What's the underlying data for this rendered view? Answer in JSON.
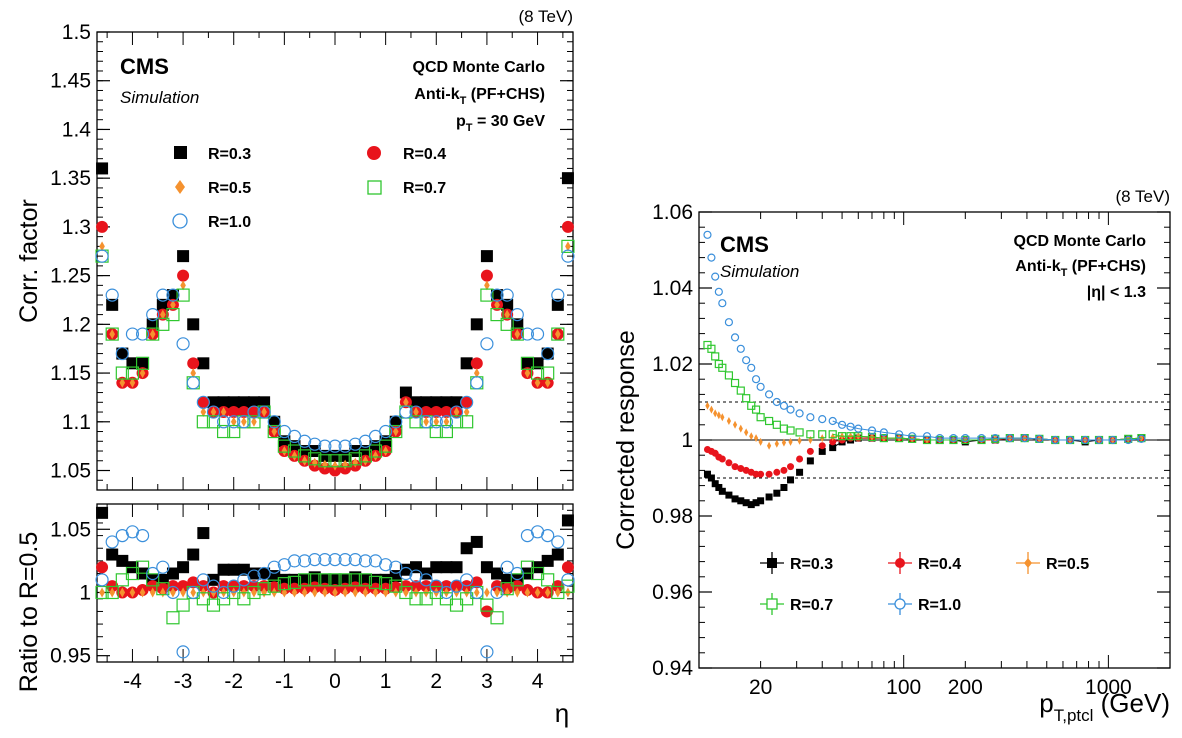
{
  "colors": {
    "r03": "#000000",
    "r04": "#e8141c",
    "r05": "#f5922f",
    "r07": "#2fc72f",
    "r10": "#3a8fdb"
  },
  "left_panel": {
    "energy": "(8 TeV)",
    "cms": "CMS",
    "simulation": "Simulation",
    "mc_label": "QCD Monte Carlo",
    "algo_main": "Anti-k",
    "algo_sub": "T",
    "algo_tail": " (PF+CHS)",
    "cut_main": "p",
    "cut_sub": "T",
    "cut_tail": " = 30 GeV",
    "legend": [
      "R=0.3",
      "R=0.4",
      "R=0.5",
      "R=0.7",
      "R=1.0"
    ]
  },
  "right_panel": {
    "energy": "(8 TeV)",
    "cms": "CMS",
    "simulation": "Simulation",
    "mc_label": "QCD Monte Carlo",
    "algo_main": "Anti-k",
    "algo_sub": "T",
    "algo_tail": " (PF+CHS)",
    "eta_cut": "|η| < 1.3",
    "legend": [
      "R=0.3",
      "R=0.4",
      "R=0.5",
      "R=0.7",
      "R=1.0"
    ]
  },
  "chart_data": [
    {
      "type": "scatter",
      "panel": "top-left",
      "xlabel": "",
      "ylabel": "Corr. factor",
      "xlim": [
        -4.7,
        4.7
      ],
      "ylim": [
        1.03,
        1.5
      ],
      "yticks": [
        1.05,
        1.1,
        1.15,
        1.2,
        1.25,
        1.3,
        1.35,
        1.4,
        1.45,
        1.5
      ],
      "ytick_labels": [
        "1.05",
        "1.1",
        "1.15",
        "1.2",
        "1.25",
        "1.3",
        "1.35",
        "1.4",
        "1.45",
        "1.5"
      ],
      "eta_points": [
        -4.6,
        -4.4,
        -4.2,
        -4.0,
        -3.8,
        -3.6,
        -3.4,
        -3.2,
        -3.0,
        -2.8,
        -2.6,
        -2.4,
        -2.2,
        -2.0,
        -1.8,
        -1.6,
        -1.4,
        -1.2,
        -1.0,
        -0.8,
        -0.6,
        -0.4,
        -0.2,
        0.0,
        0.2,
        0.4,
        0.6,
        0.8,
        1.0,
        1.2,
        1.4,
        1.6,
        1.8,
        2.0,
        2.2,
        2.4,
        2.6,
        2.8,
        3.0,
        3.2,
        3.4,
        3.6,
        3.8,
        4.0,
        4.2,
        4.4,
        4.6
      ],
      "series": [
        {
          "name": "R=0.3",
          "values": [
            1.36,
            1.22,
            1.17,
            1.16,
            1.16,
            1.2,
            1.22,
            1.23,
            1.27,
            1.2,
            1.16,
            1.12,
            1.12,
            1.12,
            1.12,
            1.12,
            1.12,
            1.1,
            1.08,
            1.075,
            1.07,
            1.07,
            1.065,
            1.065,
            1.065,
            1.07,
            1.07,
            1.075,
            1.08,
            1.1,
            1.13,
            1.12,
            1.12,
            1.12,
            1.12,
            1.12,
            1.16,
            1.2,
            1.27,
            1.23,
            1.22,
            1.2,
            1.16,
            1.16,
            1.17,
            1.22,
            1.35
          ]
        },
        {
          "name": "R=0.4",
          "values": [
            1.3,
            1.19,
            1.14,
            1.14,
            1.15,
            1.19,
            1.21,
            1.22,
            1.25,
            1.16,
            1.12,
            1.11,
            1.11,
            1.11,
            1.11,
            1.11,
            1.11,
            1.09,
            1.07,
            1.065,
            1.06,
            1.055,
            1.052,
            1.05,
            1.052,
            1.055,
            1.06,
            1.065,
            1.07,
            1.09,
            1.12,
            1.11,
            1.11,
            1.11,
            1.11,
            1.11,
            1.12,
            1.16,
            1.25,
            1.22,
            1.21,
            1.19,
            1.15,
            1.14,
            1.14,
            1.19,
            1.3
          ]
        },
        {
          "name": "R=0.5",
          "values": [
            1.28,
            1.19,
            1.14,
            1.14,
            1.15,
            1.19,
            1.21,
            1.22,
            1.24,
            1.15,
            1.11,
            1.11,
            1.11,
            1.1,
            1.1,
            1.1,
            1.11,
            1.09,
            1.07,
            1.065,
            1.06,
            1.058,
            1.056,
            1.055,
            1.056,
            1.058,
            1.06,
            1.065,
            1.07,
            1.09,
            1.12,
            1.11,
            1.1,
            1.1,
            1.1,
            1.11,
            1.11,
            1.15,
            1.24,
            1.22,
            1.21,
            1.19,
            1.15,
            1.14,
            1.14,
            1.19,
            1.28
          ]
        },
        {
          "name": "R=0.7",
          "values": [
            1.27,
            1.19,
            1.15,
            1.15,
            1.16,
            1.19,
            1.2,
            1.21,
            1.23,
            1.14,
            1.1,
            1.1,
            1.09,
            1.09,
            1.1,
            1.1,
            1.11,
            1.09,
            1.075,
            1.07,
            1.065,
            1.062,
            1.06,
            1.06,
            1.06,
            1.062,
            1.065,
            1.07,
            1.075,
            1.09,
            1.11,
            1.1,
            1.1,
            1.09,
            1.09,
            1.1,
            1.1,
            1.14,
            1.23,
            1.21,
            1.2,
            1.19,
            1.16,
            1.15,
            1.15,
            1.19,
            1.28
          ]
        },
        {
          "name": "R=1.0",
          "values": [
            1.27,
            1.23,
            1.17,
            1.19,
            1.19,
            1.21,
            1.23,
            1.23,
            1.18,
            1.14,
            1.12,
            1.11,
            1.1,
            1.1,
            1.1,
            1.11,
            1.11,
            1.1,
            1.09,
            1.085,
            1.08,
            1.077,
            1.075,
            1.075,
            1.075,
            1.077,
            1.08,
            1.085,
            1.09,
            1.1,
            1.11,
            1.11,
            1.1,
            1.1,
            1.1,
            1.11,
            1.12,
            1.14,
            1.18,
            1.23,
            1.23,
            1.21,
            1.19,
            1.19,
            1.17,
            1.23,
            1.27
          ]
        }
      ]
    },
    {
      "type": "scatter",
      "panel": "bottom-left",
      "xlabel": "η",
      "ylabel": "Ratio to R=0.5",
      "xlim": [
        -4.7,
        4.7
      ],
      "ylim": [
        0.945,
        1.07
      ],
      "xticks": [
        -4,
        -3,
        -2,
        -1,
        0,
        1,
        2,
        3,
        4
      ],
      "xtick_labels": [
        "-4",
        "-3",
        "-2",
        "-1",
        "0",
        "1",
        "2",
        "3",
        "4"
      ],
      "yticks": [
        0.95,
        1.0,
        1.05
      ],
      "ytick_labels": [
        "0.95",
        "1",
        "1.05"
      ],
      "eta_points": [
        -4.6,
        -4.4,
        -4.2,
        -4.0,
        -3.8,
        -3.6,
        -3.4,
        -3.2,
        -3.0,
        -2.8,
        -2.6,
        -2.4,
        -2.2,
        -2.0,
        -1.8,
        -1.6,
        -1.4,
        -1.2,
        -1.0,
        -0.8,
        -0.6,
        -0.4,
        -0.2,
        0.0,
        0.2,
        0.4,
        0.6,
        0.8,
        1.0,
        1.2,
        1.4,
        1.6,
        1.8,
        2.0,
        2.2,
        2.4,
        2.6,
        2.8,
        3.0,
        3.2,
        3.4,
        3.6,
        3.8,
        4.0,
        4.2,
        4.4,
        4.6
      ],
      "series": [
        {
          "name": "R=0.3",
          "values": [
            1.063,
            1.03,
            1.025,
            1.02,
            1.015,
            1.01,
            1.01,
            1.015,
            1.02,
            1.03,
            1.047,
            1.01,
            1.018,
            1.018,
            1.018,
            1.015,
            1.015,
            1.013,
            1.01,
            1.01,
            1.01,
            1.012,
            1.01,
            1.01,
            1.01,
            1.012,
            1.01,
            1.01,
            1.01,
            1.013,
            1.018,
            1.02,
            1.015,
            1.02,
            1.02,
            1.02,
            1.035,
            1.04,
            1.02,
            1.015,
            1.01,
            1.01,
            1.015,
            1.02,
            1.025,
            1.03,
            1.057
          ]
        },
        {
          "name": "R=0.4",
          "values": [
            1.02,
            1.005,
            1.0,
            1.0,
            1.002,
            1.005,
            1.003,
            1.005,
            1.005,
            1.008,
            1.005,
            1.0,
            1.005,
            1.005,
            1.005,
            1.005,
            1.005,
            1.004,
            1.003,
            1.003,
            1.003,
            1.004,
            1.003,
            1.002,
            1.003,
            1.004,
            1.003,
            1.003,
            1.003,
            1.004,
            1.005,
            1.005,
            1.005,
            1.005,
            1.005,
            1.005,
            1.005,
            1.008,
            0.985,
            1.005,
            1.003,
            1.005,
            1.002,
            1.0,
            1.0,
            1.005,
            1.02
          ]
        },
        {
          "name": "R=0.5",
          "values": [
            1.0,
            1.0,
            1.0,
            1.0,
            1.0,
            1.0,
            1.0,
            1.0,
            1.0,
            1.0,
            1.0,
            1.0,
            1.0,
            1.0,
            1.0,
            1.0,
            1.0,
            1.0,
            1.0,
            1.0,
            1.0,
            1.0,
            1.0,
            1.0,
            1.0,
            1.0,
            1.0,
            1.0,
            1.0,
            1.0,
            1.0,
            1.0,
            1.0,
            1.0,
            1.0,
            1.0,
            1.0,
            1.0,
            1.0,
            1.0,
            1.0,
            1.0,
            1.0,
            1.0,
            1.0,
            1.0,
            1.0
          ]
        },
        {
          "name": "R=0.7",
          "values": [
            1.0,
            1.0,
            1.01,
            1.015,
            1.02,
            1.01,
            1.003,
            0.98,
            0.99,
            1.0,
            0.995,
            0.99,
            0.995,
            1.0,
            0.995,
            1.0,
            1.003,
            1.005,
            1.007,
            1.008,
            1.01,
            1.01,
            1.01,
            1.01,
            1.01,
            1.01,
            1.01,
            1.008,
            1.007,
            1.005,
            1.0,
            0.995,
            0.995,
            1.0,
            0.995,
            0.99,
            0.995,
            1.0,
            0.99,
            0.98,
            1.003,
            1.01,
            1.02,
            1.015,
            1.01,
            1.0,
            1.005
          ]
        },
        {
          "name": "R=1.0",
          "values": [
            1.01,
            1.04,
            1.045,
            1.048,
            1.045,
            1.015,
            1.02,
            1.0,
            0.953,
            1.0,
            1.01,
            1.005,
            1.0,
            1.005,
            1.01,
            1.013,
            1.015,
            1.02,
            1.022,
            1.025,
            1.025,
            1.026,
            1.026,
            1.026,
            1.026,
            1.026,
            1.025,
            1.025,
            1.022,
            1.02,
            1.015,
            1.013,
            1.01,
            1.005,
            1.0,
            1.005,
            1.01,
            1.0,
            0.953,
            1.0,
            1.02,
            1.015,
            1.045,
            1.048,
            1.045,
            1.04,
            1.01
          ]
        }
      ]
    },
    {
      "type": "line",
      "panel": "right",
      "xlabel_main": "p",
      "xlabel_sub": "T,ptcl",
      "xlabel_tail": " (GeV)",
      "ylabel": "Corrected response",
      "xscale": "log",
      "xlim": [
        10,
        2000
      ],
      "ylim": [
        0.94,
        1.06
      ],
      "xticks": [
        20,
        100,
        200,
        1000
      ],
      "xtick_labels": [
        "20",
        "100",
        "200",
        "1000"
      ],
      "yticks": [
        0.94,
        0.96,
        0.98,
        1.0,
        1.02,
        1.04,
        1.06
      ],
      "ytick_labels": [
        "0.94",
        "0.96",
        "0.98",
        "1",
        "1.02",
        "1.04",
        "1.06"
      ],
      "reference_lines": [
        0.99,
        1.0,
        1.01
      ],
      "x": [
        11,
        11.5,
        12,
        12.5,
        13,
        14,
        15,
        16,
        17,
        18,
        19,
        20,
        22,
        24,
        26,
        28,
        31,
        35,
        40,
        45,
        50,
        55,
        60,
        70,
        80,
        95,
        110,
        130,
        150,
        175,
        200,
        240,
        280,
        330,
        390,
        460,
        550,
        650,
        770,
        900,
        1050,
        1250,
        1450
      ],
      "series": [
        {
          "name": "R=0.3",
          "values": [
            0.991,
            0.99,
            0.9885,
            0.9875,
            0.9865,
            0.9855,
            0.9845,
            0.984,
            0.9835,
            0.983,
            0.9835,
            0.984,
            0.985,
            0.986,
            0.9875,
            0.9895,
            0.9915,
            0.9945,
            0.997,
            0.998,
            0.9995,
            1.0,
            1.0005,
            1.0005,
            1.0005,
            1.0005,
            1.0003,
            1.0,
            1.0,
            1.0,
            0.9995,
            1.0,
            1.0,
            1.0005,
            1.0005,
            1.0003,
            1.0,
            1.0,
            0.9995,
            1.0,
            1.0,
            1.0003,
            1.0005
          ]
        },
        {
          "name": "R=0.4",
          "values": [
            0.9975,
            0.997,
            0.9965,
            0.9955,
            0.995,
            0.994,
            0.993,
            0.9925,
            0.992,
            0.9915,
            0.991,
            0.991,
            0.991,
            0.9915,
            0.992,
            0.993,
            0.995,
            0.997,
            0.9985,
            0.9995,
            1.0,
            1.0005,
            1.0005,
            1.0005,
            1.0005,
            1.0005,
            1.0003,
            1.0,
            1.0,
            1.0,
            1.0,
            1.0,
            1.0,
            1.0005,
            1.0005,
            1.0003,
            1.0,
            1.0,
            1.0,
            1.0,
            1.0,
            1.0003,
            1.0005
          ]
        },
        {
          "name": "R=0.5",
          "values": [
            1.009,
            1.008,
            1.007,
            1.0065,
            1.006,
            1.005,
            1.004,
            1.003,
            1.002,
            1.001,
            1.0005,
            0.9995,
            0.9985,
            0.999,
            0.9993,
            0.9995,
            0.9998,
            1.0,
            1.0005,
            1.0008,
            1.001,
            1.001,
            1.001,
            1.0008,
            1.0005,
            1.0005,
            1.0003,
            1.0,
            1.0,
            1.0,
            1.0,
            1.0,
            1.0003,
            1.0005,
            1.0005,
            1.0003,
            1.0,
            1.0,
            1.0,
            1.0,
            1.0,
            1.0003,
            1.0005
          ]
        },
        {
          "name": "R=0.7",
          "values": [
            1.025,
            1.024,
            1.022,
            1.02,
            1.019,
            1.017,
            1.015,
            1.013,
            1.011,
            1.009,
            1.008,
            1.006,
            1.005,
            1.004,
            1.003,
            1.0025,
            1.002,
            1.0015,
            1.0015,
            1.0015,
            1.001,
            1.001,
            1.001,
            1.0008,
            1.0005,
            1.0005,
            1.0003,
            1.0,
            1.0,
            1.0,
            1.0,
            1.0,
            1.0003,
            1.0005,
            1.0005,
            1.0003,
            1.0,
            1.0,
            1.0,
            1.0,
            1.0,
            1.0003,
            1.0005
          ]
        },
        {
          "name": "R=1.0",
          "values": [
            1.054,
            1.048,
            1.043,
            1.039,
            1.036,
            1.031,
            1.027,
            1.024,
            1.021,
            1.019,
            1.016,
            1.014,
            1.012,
            1.01,
            1.009,
            1.008,
            1.007,
            1.006,
            1.0055,
            1.005,
            1.004,
            1.0035,
            1.003,
            1.0025,
            1.002,
            1.0015,
            1.001,
            1.001,
            1.0005,
            1.0005,
            1.0005,
            1.0005,
            1.0005,
            1.0005,
            1.0005,
            1.0003,
            1.0,
            1.0,
            1.0,
            1.0,
            1.0,
            1.0,
            1.0003
          ]
        }
      ]
    }
  ]
}
